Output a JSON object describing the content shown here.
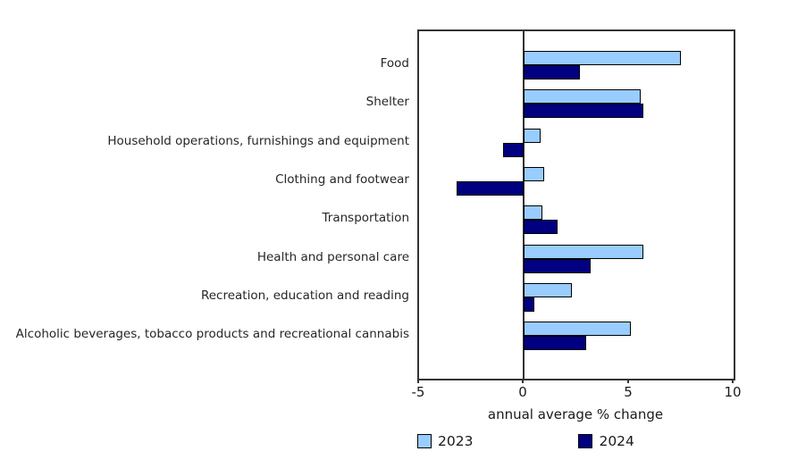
{
  "chart_data": {
    "type": "bar",
    "orientation": "horizontal",
    "title": "",
    "categories": [
      "Food",
      "Shelter",
      "Household operations, furnishings and equipment",
      "Clothing and footwear",
      "Transportation",
      "Health and personal care",
      "Recreation, education and reading",
      "Alcoholic beverages, tobacco products and recreational cannabis"
    ],
    "series": [
      {
        "name": "2023",
        "color": "#99CCFF",
        "values": [
          7.5,
          5.6,
          0.8,
          1.0,
          0.9,
          5.7,
          2.3,
          5.1
        ]
      },
      {
        "name": "2024",
        "color": "#000080",
        "values": [
          2.7,
          5.7,
          -1.0,
          -3.2,
          1.6,
          3.2,
          0.5,
          3.0
        ]
      }
    ],
    "xlabel": "annual average % change",
    "ylabel": "",
    "xlim": [
      -5,
      10
    ],
    "xticks": [
      -5,
      0,
      5,
      10
    ],
    "grid": false,
    "legend_position": "bottom",
    "bar_border_color": "#000000",
    "axis_color": "#333333",
    "background_color": "#ffffff"
  }
}
